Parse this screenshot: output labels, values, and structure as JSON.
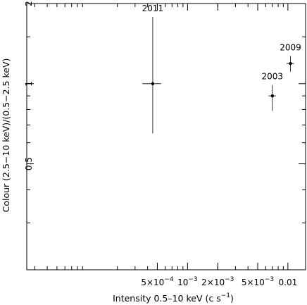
{
  "chart_data": {
    "type": "scatter",
    "title": "",
    "xlabel": "Intensity 0.5–10 keV (c s",
    "xlabel_sup": "−1",
    "xlabel_close": ")",
    "ylabel": "Colour (2.5−10 keV)/(0.5−2.5 keV)",
    "xscale": "log",
    "yscale": "log",
    "xlim": [
      2.5e-05,
      0.015
    ],
    "ylim": [
      0.2,
      2
    ],
    "grid": false,
    "legend": "none",
    "x_ticks": [
      {
        "value": 0.0005,
        "mant": "5×10",
        "exp": "−4"
      },
      {
        "value": 0.001,
        "mant": "10",
        "exp": "−3"
      },
      {
        "value": 0.002,
        "mant": "2×10",
        "exp": "−3"
      },
      {
        "value": 0.005,
        "mant": "5×10",
        "exp": "−3"
      },
      {
        "value": 0.01,
        "mant": "0.01",
        "exp": ""
      }
    ],
    "y_ticks": [
      {
        "value": 2,
        "label": "2"
      },
      {
        "value": 1,
        "label": "1"
      },
      {
        "value": 0.5,
        "label": "0.5"
      }
    ],
    "points": [
      {
        "label": "2011",
        "x": 0.00045,
        "x_err": [
          9.5e-05,
          9.5e-05
        ],
        "y": 1.0,
        "y_err_low": 0.65,
        "y_err_high": 1.78
      },
      {
        "label": "2003",
        "x": 0.007,
        "x_err": [
          0.0006,
          0.0006
        ],
        "y": 0.9,
        "y_err_low": 0.79,
        "y_err_high": 0.99
      },
      {
        "label": "2009",
        "x": 0.0106,
        "x_err": [
          0.0009,
          0.0009
        ],
        "y": 1.19,
        "y_err_low": 1.11,
        "y_err_high": 1.27
      }
    ]
  }
}
